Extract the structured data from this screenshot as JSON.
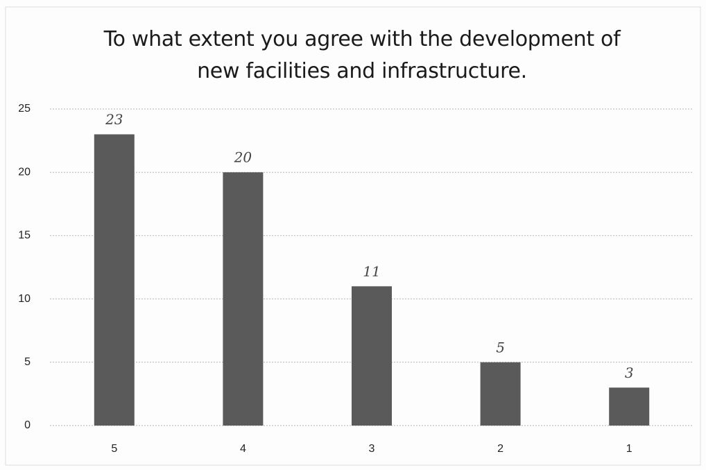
{
  "chart_data": {
    "type": "bar",
    "title": "To what extent you agree with the development of new facilities and infrastructure.",
    "categories": [
      "5",
      "4",
      "3",
      "2",
      "1"
    ],
    "values": [
      23,
      20,
      11,
      5,
      3
    ],
    "color": "#5a5a5a",
    "ylim": [
      0,
      25
    ],
    "yticks": [
      0,
      5,
      10,
      15,
      20,
      25
    ],
    "grid": true
  }
}
